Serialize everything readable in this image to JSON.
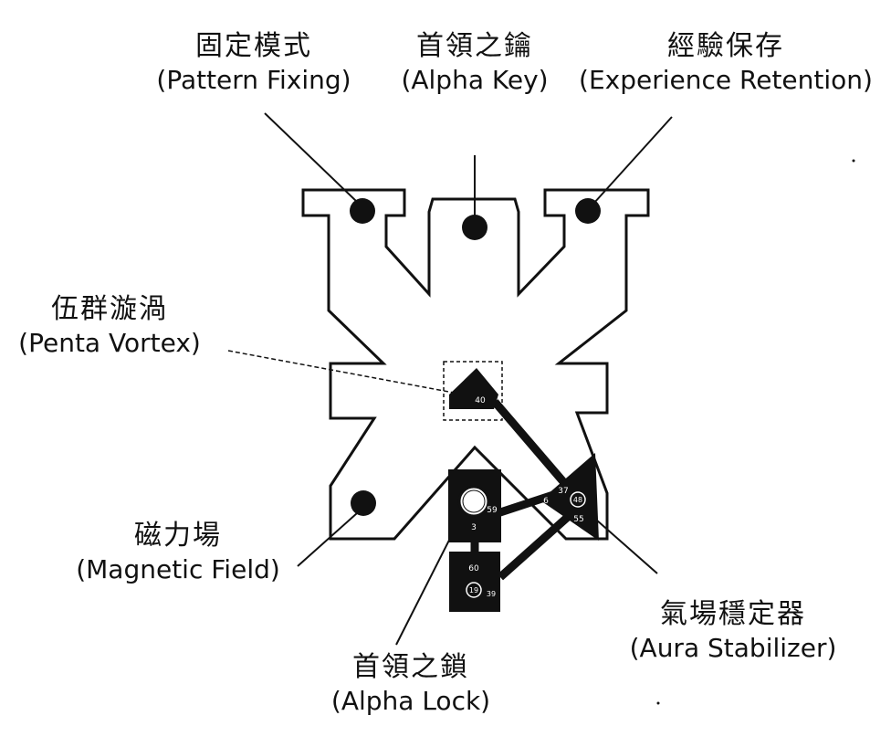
{
  "labels": {
    "pattern_fixing": {
      "zh": "固定模式",
      "en": "(Pattern Fixing)"
    },
    "alpha_key": {
      "zh": "首領之鑰",
      "en": "(Alpha Key)"
    },
    "experience_retention": {
      "zh": "經驗保存",
      "en": "(Experience Retention)"
    },
    "penta_vortex": {
      "zh": "伍群漩渦",
      "en": "(Penta Vortex)"
    },
    "magnetic_field": {
      "zh": "磁力場",
      "en": "(Magnetic Field)"
    },
    "alpha_lock": {
      "zh": "首領之鎖",
      "en": "(Alpha Lock)"
    },
    "aura_stabilizer": {
      "zh": "氣場穩定器",
      "en": "(Aura Stabilizer)"
    }
  },
  "numbers": {
    "vortex": "40",
    "lock_right": "59",
    "lock_bottom": "3",
    "lower_top": "60",
    "lower_circle": "19",
    "lower_right": "39",
    "stab_left": "6",
    "stab_top": "37",
    "stab_circle": "48",
    "stab_bottom": "55"
  },
  "colors": {
    "ink": "#111111",
    "background": "#ffffff"
  }
}
